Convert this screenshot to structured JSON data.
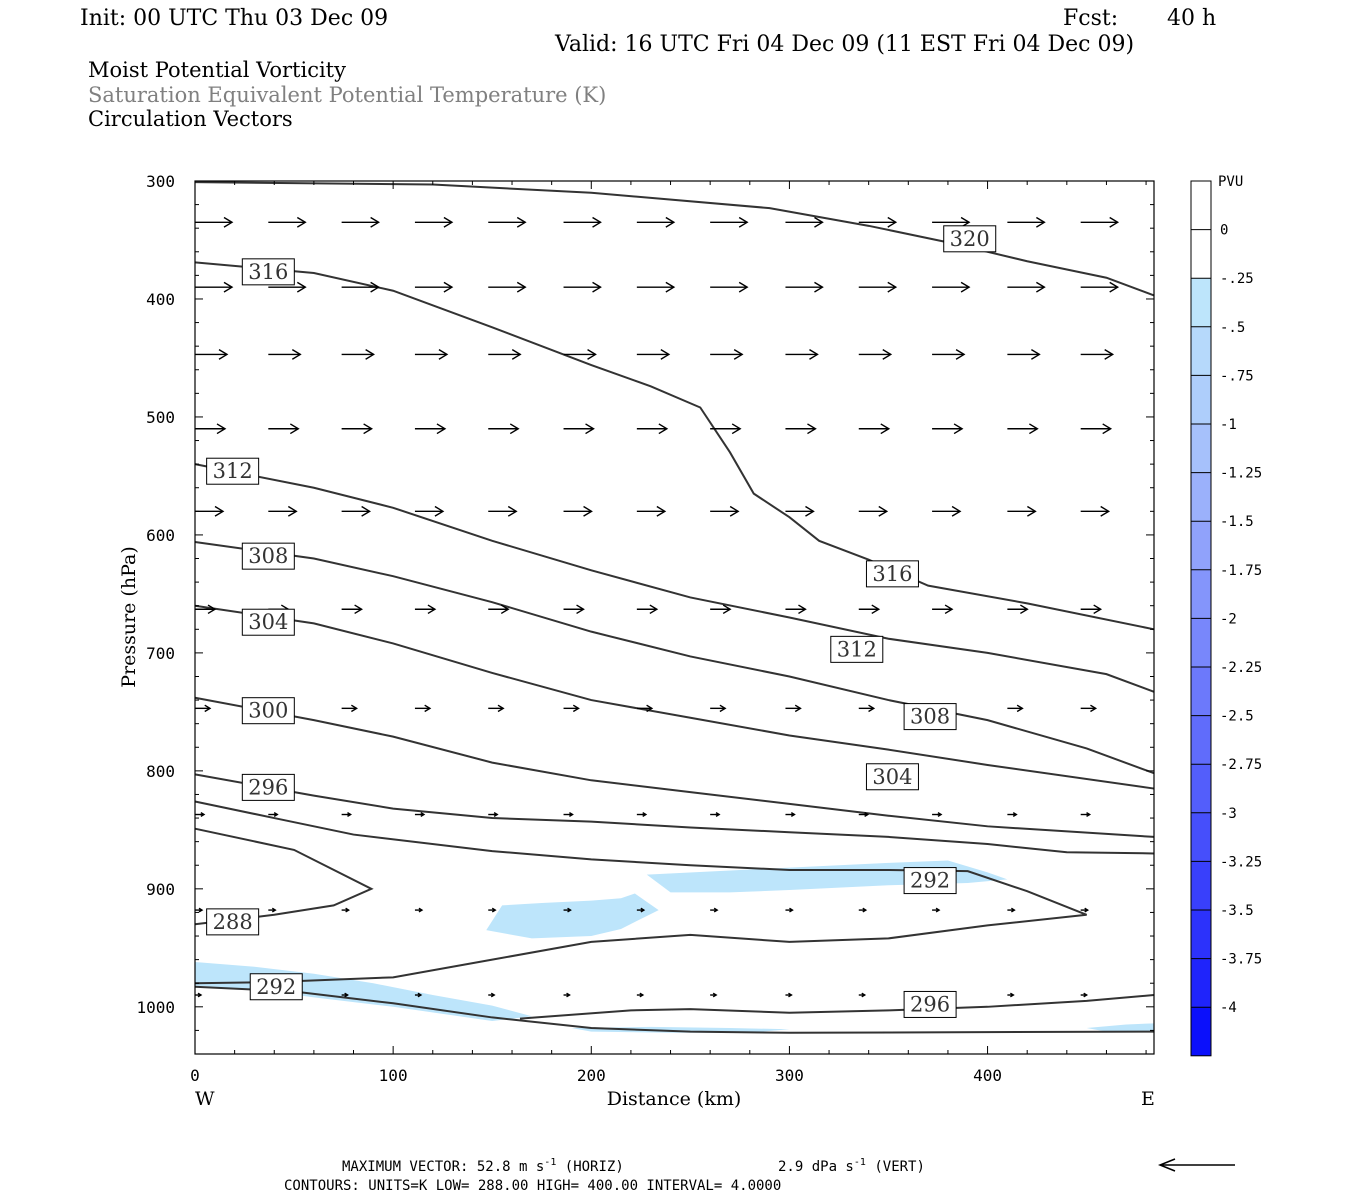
{
  "header": {
    "init": "Init: 00 UTC Thu 03 Dec 09",
    "fcst_label": "Fcst:",
    "fcst_value": "40 h",
    "valid": "Valid: 16 UTC Fri 04 Dec 09 (11 EST Fri 04 Dec 09)",
    "field1": "Moist Potential Vorticity",
    "field2": "Saturation Equivalent Potential Temperature (K)",
    "field3": "Circulation Vectors"
  },
  "colors": {
    "contour": "#333333",
    "fill": "#bde5fb",
    "vector": "#000000"
  },
  "chart_data": {
    "type": "cross-section",
    "xlabel": "Distance (km)",
    "ylabel": "Pressure (hPa)",
    "xlim": [
      0,
      484
    ],
    "ylim": [
      1040,
      300
    ],
    "x_ticks": [
      "0",
      "100",
      "200",
      "300",
      "400"
    ],
    "y_ticks": [
      "300",
      "400",
      "500",
      "600",
      "700",
      "800",
      "900",
      "1000"
    ],
    "x_end_labels": {
      "left": "W",
      "right": "E"
    },
    "contours": [
      {
        "value": "320",
        "points": [
          [
            0,
            301
          ],
          [
            120,
            303
          ],
          [
            200,
            310
          ],
          [
            290,
            323
          ],
          [
            340,
            338
          ],
          [
            380,
            352
          ],
          [
            420,
            368
          ],
          [
            460,
            382
          ],
          [
            484,
            397
          ]
        ]
      },
      {
        "value": "316",
        "points": [
          [
            0,
            369
          ],
          [
            60,
            378
          ],
          [
            100,
            393
          ],
          [
            150,
            424
          ],
          [
            200,
            456
          ],
          [
            230,
            474
          ],
          [
            255,
            492
          ],
          [
            270,
            530
          ],
          [
            282,
            565
          ],
          [
            300,
            585
          ],
          [
            315,
            605
          ],
          [
            340,
            621
          ],
          [
            370,
            643
          ],
          [
            420,
            658
          ],
          [
            484,
            680
          ]
        ]
      },
      {
        "value": "312",
        "points": [
          [
            0,
            540
          ],
          [
            60,
            560
          ],
          [
            100,
            577
          ],
          [
            150,
            605
          ],
          [
            200,
            630
          ],
          [
            250,
            653
          ],
          [
            300,
            670
          ],
          [
            350,
            688
          ],
          [
            400,
            700
          ],
          [
            460,
            718
          ],
          [
            484,
            733
          ]
        ]
      },
      {
        "value": "308",
        "points": [
          [
            0,
            606
          ],
          [
            60,
            620
          ],
          [
            100,
            635
          ],
          [
            150,
            657
          ],
          [
            200,
            682
          ],
          [
            250,
            703
          ],
          [
            300,
            720
          ],
          [
            350,
            740
          ],
          [
            400,
            757
          ],
          [
            450,
            781
          ],
          [
            484,
            802
          ]
        ]
      },
      {
        "value": "304",
        "points": [
          [
            0,
            660
          ],
          [
            60,
            675
          ],
          [
            100,
            692
          ],
          [
            150,
            717
          ],
          [
            200,
            740
          ],
          [
            250,
            755
          ],
          [
            300,
            770
          ],
          [
            350,
            782
          ],
          [
            400,
            795
          ],
          [
            484,
            815
          ]
        ]
      },
      {
        "value": "300",
        "points": [
          [
            0,
            738
          ],
          [
            60,
            757
          ],
          [
            100,
            771
          ],
          [
            150,
            793
          ],
          [
            200,
            808
          ],
          [
            250,
            818
          ],
          [
            300,
            828
          ],
          [
            350,
            838
          ],
          [
            400,
            847
          ],
          [
            484,
            856
          ]
        ]
      },
      {
        "value": "296",
        "points": [
          [
            0,
            803
          ],
          [
            60,
            821
          ],
          [
            100,
            832
          ],
          [
            150,
            840
          ],
          [
            200,
            843
          ],
          [
            250,
            848
          ],
          [
            300,
            852
          ],
          [
            350,
            856
          ],
          [
            400,
            862
          ],
          [
            440,
            869
          ],
          [
            484,
            870
          ]
        ]
      },
      {
        "value": "292 (upper)",
        "points": [
          [
            0,
            826
          ],
          [
            40,
            840
          ],
          [
            80,
            854
          ],
          [
            150,
            868
          ],
          [
            200,
            875
          ],
          [
            250,
            880
          ],
          [
            300,
            884
          ],
          [
            350,
            884
          ],
          [
            390,
            885
          ],
          [
            420,
            902
          ],
          [
            450,
            922
          ],
          [
            400,
            931
          ],
          [
            350,
            942
          ],
          [
            300,
            945
          ],
          [
            250,
            939
          ],
          [
            200,
            945
          ],
          [
            150,
            960
          ],
          [
            100,
            975
          ],
          [
            40,
            979
          ],
          [
            0,
            980
          ]
        ]
      },
      {
        "value": "288",
        "points": [
          [
            0,
            849
          ],
          [
            50,
            867
          ],
          [
            89,
            900
          ],
          [
            70,
            914
          ],
          [
            40,
            922
          ],
          [
            0,
            930
          ]
        ]
      },
      {
        "value": "296 (lower)",
        "points": [
          [
            164,
            1010
          ],
          [
            220,
            1003
          ],
          [
            250,
            1002
          ],
          [
            300,
            1005
          ],
          [
            350,
            1003
          ],
          [
            400,
            1000
          ],
          [
            450,
            995
          ],
          [
            484,
            990
          ]
        ]
      },
      {
        "value": "292 (lower)",
        "points": [
          [
            0,
            983
          ],
          [
            50,
            987
          ],
          [
            100,
            997
          ],
          [
            150,
            1009
          ],
          [
            200,
            1018
          ],
          [
            250,
            1021
          ],
          [
            300,
            1022
          ],
          [
            484,
            1021
          ]
        ]
      }
    ],
    "contour_labels": [
      {
        "text": "320",
        "x": 391,
        "y": 349
      },
      {
        "text": "316",
        "x": 37,
        "y": 377
      },
      {
        "text": "316",
        "x": 352,
        "y": 633
      },
      {
        "text": "312",
        "x": 19,
        "y": 546
      },
      {
        "text": "312",
        "x": 334,
        "y": 697
      },
      {
        "text": "308",
        "x": 37,
        "y": 618
      },
      {
        "text": "308",
        "x": 371,
        "y": 754
      },
      {
        "text": "304",
        "x": 37,
        "y": 674
      },
      {
        "text": "304",
        "x": 352,
        "y": 805
      },
      {
        "text": "300",
        "x": 37,
        "y": 749
      },
      {
        "text": "296",
        "x": 37,
        "y": 814
      },
      {
        "text": "296",
        "x": 371,
        "y": 998
      },
      {
        "text": "292",
        "x": 371,
        "y": 893
      },
      {
        "text": "292",
        "x": 41,
        "y": 983
      },
      {
        "text": "288",
        "x": 19,
        "y": 928
      }
    ],
    "mpv_filled_regions": [
      {
        "level": "-0.25",
        "points": [
          [
            228,
            888
          ],
          [
            300,
            882
          ],
          [
            350,
            878
          ],
          [
            380,
            876
          ],
          [
            400,
            886
          ],
          [
            410,
            892
          ],
          [
            390,
            895
          ],
          [
            350,
            897
          ],
          [
            300,
            901
          ],
          [
            270,
            903
          ],
          [
            240,
            903
          ]
        ]
      },
      {
        "level": "-0.25",
        "points": [
          [
            147,
            935
          ],
          [
            155,
            914
          ],
          [
            175,
            912
          ],
          [
            200,
            910
          ],
          [
            215,
            908
          ],
          [
            222,
            904
          ],
          [
            234,
            918
          ],
          [
            215,
            934
          ],
          [
            200,
            940
          ],
          [
            170,
            942
          ]
        ]
      },
      {
        "level": "-0.25",
        "points": [
          [
            0,
            962
          ],
          [
            30,
            966
          ],
          [
            60,
            972
          ],
          [
            90,
            980
          ],
          [
            120,
            990
          ],
          [
            150,
            999
          ],
          [
            170,
            1008
          ],
          [
            150,
            1012
          ],
          [
            100,
            1000
          ],
          [
            60,
            992
          ],
          [
            30,
            985
          ],
          [
            0,
            982
          ]
        ]
      },
      {
        "level": "-0.25",
        "points": [
          [
            190,
            1018
          ],
          [
            230,
            1017
          ],
          [
            270,
            1018
          ],
          [
            300,
            1019
          ],
          [
            280,
            1022
          ],
          [
            240,
            1022
          ],
          [
            200,
            1021
          ]
        ]
      },
      {
        "level": "-0.25",
        "points": [
          [
            450,
            1018
          ],
          [
            470,
            1015
          ],
          [
            484,
            1014
          ],
          [
            484,
            1021
          ],
          [
            460,
            1021
          ]
        ]
      }
    ],
    "vector_rows": [
      {
        "p": 335,
        "len": 37,
        "xs": [
          0,
          37,
          74,
          111,
          148,
          186,
          223,
          260,
          298,
          335,
          372,
          410,
          447
        ]
      },
      {
        "p": 390,
        "len": 37,
        "xs": [
          0,
          37,
          74,
          111,
          148,
          186,
          223,
          260,
          298,
          335,
          372,
          410,
          447
        ]
      },
      {
        "p": 447,
        "len": 32,
        "xs": [
          0,
          37,
          74,
          111,
          148,
          186,
          223,
          260,
          298,
          335,
          372,
          410,
          447
        ]
      },
      {
        "p": 510,
        "len": 30,
        "xs": [
          0,
          37,
          74,
          111,
          148,
          186,
          223,
          260,
          298,
          335,
          372,
          410,
          447
        ]
      },
      {
        "p": 580,
        "len": 28,
        "xs": [
          0,
          37,
          74,
          111,
          148,
          186,
          223,
          260,
          298,
          335,
          372,
          410,
          447
        ]
      },
      {
        "p": 663,
        "len": 20,
        "xs": [
          0,
          37,
          74,
          111,
          148,
          186,
          223,
          260,
          298,
          335,
          372,
          410,
          447
        ]
      },
      {
        "p": 747,
        "len": 15,
        "xs": [
          0,
          37,
          74,
          111,
          148,
          186,
          223,
          260,
          298,
          335,
          372,
          410,
          447
        ]
      },
      {
        "p": 837,
        "len": 9,
        "xs": [
          0,
          37,
          74,
          111,
          148,
          186,
          223,
          260,
          298,
          335,
          372,
          410,
          447
        ]
      },
      {
        "p": 918,
        "len": 7,
        "xs": [
          0,
          37,
          74,
          111,
          148,
          186,
          223,
          260,
          298,
          335,
          372,
          410,
          447
        ]
      },
      {
        "p": 990,
        "len": 6,
        "xs": [
          0,
          37,
          74,
          111,
          148,
          186,
          223,
          260,
          298,
          335,
          372,
          410,
          447
        ]
      }
    ],
    "colorbar": {
      "title": "PVU",
      "labels": [
        "0",
        "-.25",
        "-.5",
        "-.75",
        "-1",
        "-1.25",
        "-1.5",
        "-1.75",
        "-2",
        "-2.25",
        "-2.5",
        "-2.75",
        "-3",
        "-3.25",
        "-3.5",
        "-3.75",
        "-4"
      ],
      "colors": [
        "#ffffff",
        "#ffffff",
        "#bde5fb",
        "#b6d9fb",
        "#aecefb",
        "#a6c1fb",
        "#9bb1fb",
        "#90a2fb",
        "#8495fb",
        "#7887fb",
        "#6c79fb",
        "#606cfb",
        "#535efb",
        "#464ffb",
        "#3940fb",
        "#2c32fb",
        "#1f24fb",
        "#0b10fb"
      ]
    },
    "footer": {
      "line1a": "MAXIMUM VECTOR:  52.8 m s",
      "line1b": "-1",
      "line1c": " (HORIZ)",
      "line1d": "2.9 dPa s",
      "line1e": "-1",
      "line1f": " (VERT)",
      "line2": "CONTOURS:  UNITS=K  LOW=  288.00       HIGH=  400.00       INTERVAL=    4.0000"
    }
  }
}
